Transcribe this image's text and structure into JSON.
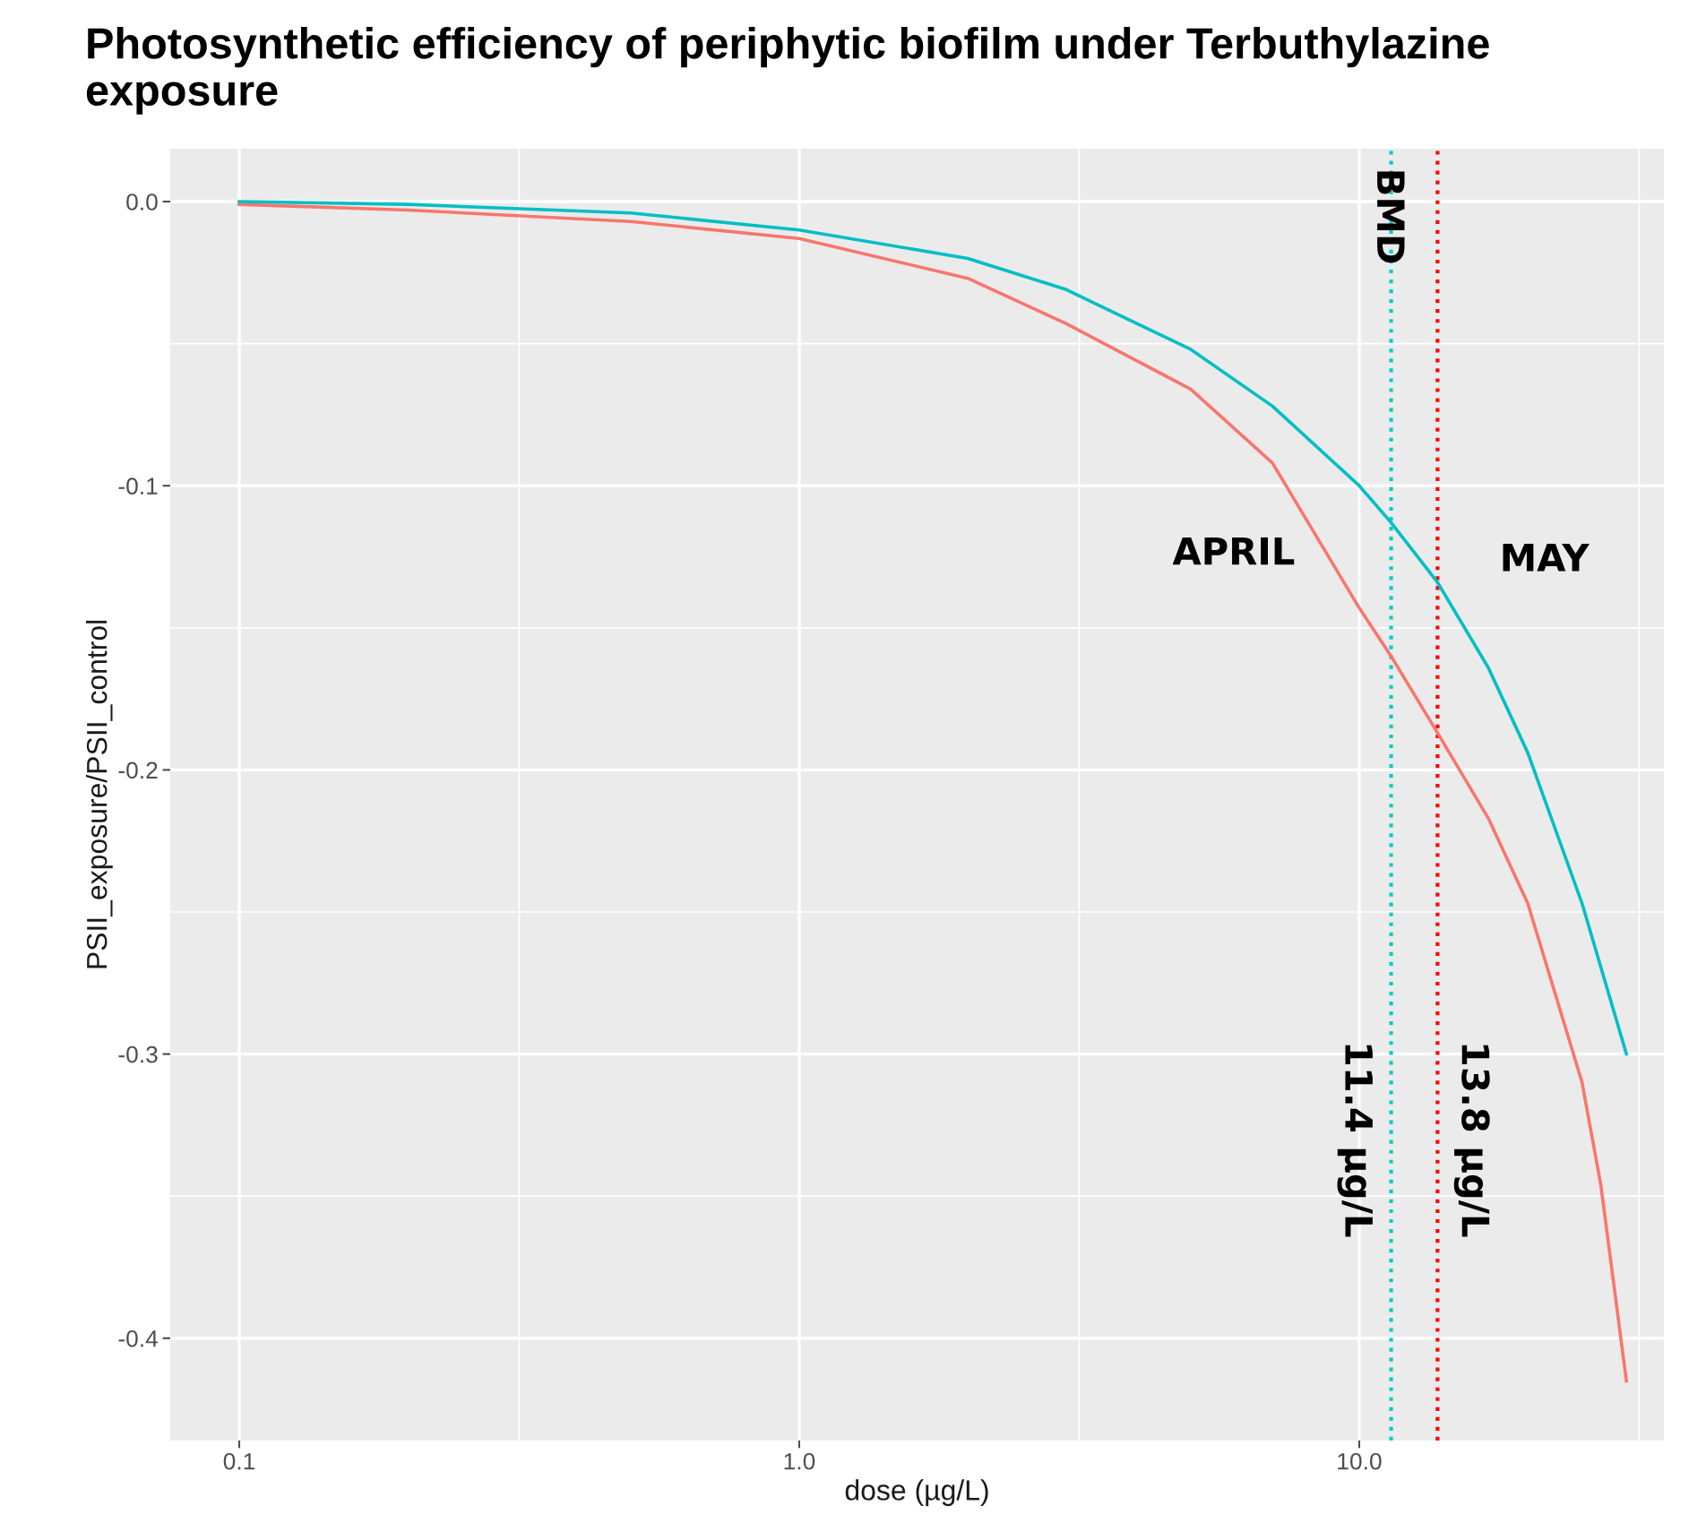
{
  "chart_data": {
    "type": "line",
    "title": "Photosynthetic efficiency of periphytic biofilm under Terbuthylazine exposure",
    "xlabel": "dose (µg/L)",
    "ylabel": "PSII_exposure/PSII_control",
    "log": "x",
    "grid": true,
    "xlim": [
      0.0753,
      35.0
    ],
    "ylim": [
      -0.436,
      0.0186
    ],
    "xticks": [
      {
        "value": 0.1,
        "label": "0.1"
      },
      {
        "value": 1,
        "label": "1.0"
      },
      {
        "value": 10,
        "label": "10.0"
      }
    ],
    "yticks": [
      {
        "value": 0,
        "label": "0.0"
      },
      -0.1,
      -0.2,
      -0.3,
      -0.4
    ],
    "series": [
      {
        "color": "#f8766d",
        "x": [
          0.1,
          0.2,
          0.5,
          1,
          2,
          3,
          5,
          7,
          10,
          11.4,
          13.8,
          17,
          20,
          25,
          27,
          30
        ],
        "values": [
          -0.001,
          -0.003,
          -0.007,
          -0.013,
          -0.027,
          -0.043,
          -0.066,
          -0.092,
          -0.143,
          -0.16,
          -0.187,
          -0.217,
          -0.247,
          -0.31,
          -0.346,
          -0.415
        ]
      },
      {
        "color": "#00bfc4",
        "x": [
          0.1,
          0.2,
          0.5,
          1,
          2,
          3,
          5,
          7,
          10,
          11.4,
          13.8,
          17,
          20,
          25,
          30
        ],
        "values": [
          0.0,
          -0.001,
          -0.004,
          -0.01,
          -0.02,
          -0.031,
          -0.052,
          -0.072,
          -0.1,
          -0.113,
          -0.134,
          -0.164,
          -0.194,
          -0.247,
          -0.3
        ]
      }
    ],
    "ref_lines": [
      {
        "axis": "x",
        "value": 11.4,
        "label": "11.4 µg/L",
        "color": "#00cdcd",
        "line_style": "dotted"
      },
      {
        "axis": "x",
        "value": 13.8,
        "label": "13.8 µg/L",
        "color": "#ff0000",
        "line_style": "dotted"
      }
    ],
    "annotations": [
      "BMD",
      "APRIL",
      "MAY"
    ]
  }
}
